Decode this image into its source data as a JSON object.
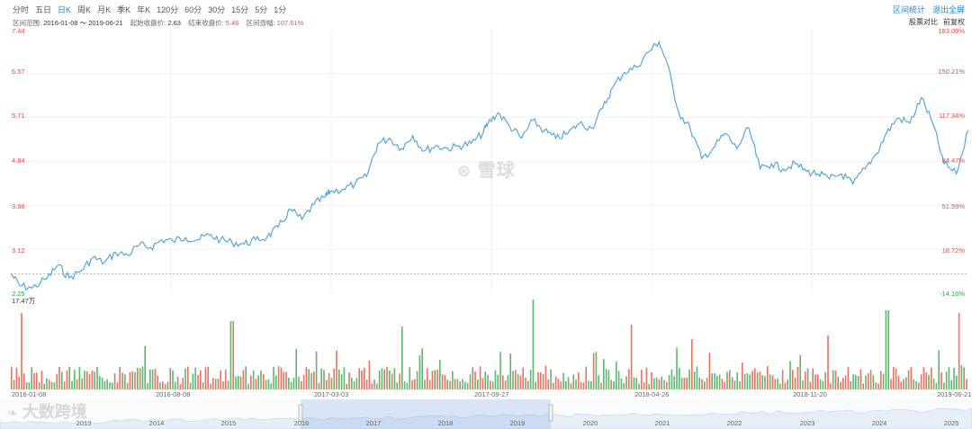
{
  "tabs": [
    "分时",
    "五日",
    "日K",
    "周K",
    "月K",
    "季K",
    "年K",
    "120分",
    "60分",
    "30分",
    "15分",
    "5分",
    "1分"
  ],
  "top_right": {
    "stats": "区间统计",
    "exit_fullscreen": "退出全屏"
  },
  "range": {
    "range_label": "区间范围:",
    "range_value": "2016-01-08 ～ 2019-06-21",
    "start_label": "起始收盘价:",
    "start_value": "2.63",
    "end_label": "结束收盘价:",
    "end_value": "5.46",
    "change_label": "区间涨幅:",
    "change_value": "107.61%"
  },
  "options": {
    "compare": "股票对比",
    "adjust": "前复权"
  },
  "y_left": [
    "7.44",
    "6.57",
    "5.71",
    "4.84",
    "3.98",
    "3.12",
    "2.25"
  ],
  "y_right": [
    "183.09%",
    "150.21%",
    "117.34%",
    "84.47%",
    "51.59%",
    "18.72%",
    "-14.16%"
  ],
  "volume_max_label": "17.47万",
  "x_dates": [
    "2016-01-08",
    "2016-08-08",
    "2017-03-03",
    "2017-09-27",
    "2018-04-26",
    "2018-11-20",
    "2019-06-21"
  ],
  "nav_years": [
    "2013",
    "2014",
    "2015",
    "2016",
    "2017",
    "2018",
    "2019",
    "2020",
    "2021",
    "2022",
    "2023",
    "2024",
    "2025"
  ],
  "watermark": "雪球",
  "watermark2": "大数跨境",
  "colors": {
    "line": "#4a9fe0",
    "up": "#e8735f",
    "down": "#5cb86a",
    "accent": "#1a8ad8"
  },
  "chart_data": {
    "type": "line",
    "title": "",
    "ylim": [
      2.25,
      7.44
    ],
    "y_right_range_pct": [
      -14.16,
      183.09
    ],
    "x_range": [
      "2016-01-08",
      "2019-06-21"
    ],
    "series": [
      {
        "values": [
          [
            "2016-01-08",
            2.63
          ],
          [
            "2016-01-20",
            2.4
          ],
          [
            "2016-02-05",
            2.35
          ],
          [
            "2016-02-25",
            2.55
          ],
          [
            "2016-03-10",
            2.8
          ],
          [
            "2016-03-25",
            2.55
          ],
          [
            "2016-04-10",
            2.7
          ],
          [
            "2016-04-25",
            2.95
          ],
          [
            "2016-05-10",
            2.85
          ],
          [
            "2016-05-25",
            3.05
          ],
          [
            "2016-06-10",
            3.0
          ],
          [
            "2016-06-25",
            3.2
          ],
          [
            "2016-07-10",
            3.15
          ],
          [
            "2016-07-25",
            3.3
          ],
          [
            "2016-08-08",
            3.28
          ],
          [
            "2016-08-25",
            3.35
          ],
          [
            "2016-09-10",
            3.3
          ],
          [
            "2016-09-25",
            3.4
          ],
          [
            "2016-10-10",
            3.3
          ],
          [
            "2016-10-25",
            3.25
          ],
          [
            "2016-11-10",
            3.22
          ],
          [
            "2016-11-25",
            3.3
          ],
          [
            "2016-12-10",
            3.35
          ],
          [
            "2016-12-25",
            3.55
          ],
          [
            "2017-01-10",
            3.9
          ],
          [
            "2017-01-25",
            3.7
          ],
          [
            "2017-02-10",
            4.0
          ],
          [
            "2017-02-25",
            4.15
          ],
          [
            "2017-03-03",
            4.25
          ],
          [
            "2017-03-20",
            4.3
          ],
          [
            "2017-04-05",
            4.4
          ],
          [
            "2017-04-20",
            4.55
          ],
          [
            "2017-05-05",
            5.2
          ],
          [
            "2017-05-20",
            5.3
          ],
          [
            "2017-06-05",
            5.1
          ],
          [
            "2017-06-20",
            5.35
          ],
          [
            "2017-07-05",
            5.05
          ],
          [
            "2017-07-20",
            5.15
          ],
          [
            "2017-08-05",
            5.1
          ],
          [
            "2017-08-20",
            5.15
          ],
          [
            "2017-09-05",
            5.2
          ],
          [
            "2017-09-20",
            5.4
          ],
          [
            "2017-09-27",
            5.6
          ],
          [
            "2017-10-10",
            5.8
          ],
          [
            "2017-10-25",
            5.55
          ],
          [
            "2017-11-10",
            5.3
          ],
          [
            "2017-11-25",
            5.65
          ],
          [
            "2017-12-10",
            5.45
          ],
          [
            "2017-12-25",
            5.3
          ],
          [
            "2018-01-10",
            5.4
          ],
          [
            "2018-01-25",
            5.6
          ],
          [
            "2018-02-10",
            5.5
          ],
          [
            "2018-02-25",
            5.9
          ],
          [
            "2018-03-10",
            6.3
          ],
          [
            "2018-03-25",
            6.6
          ],
          [
            "2018-04-10",
            6.7
          ],
          [
            "2018-04-26",
            7.0
          ],
          [
            "2018-05-10",
            7.2
          ],
          [
            "2018-05-20",
            6.8
          ],
          [
            "2018-06-05",
            5.8
          ],
          [
            "2018-06-20",
            5.5
          ],
          [
            "2018-07-05",
            4.9
          ],
          [
            "2018-07-20",
            5.1
          ],
          [
            "2018-08-05",
            5.4
          ],
          [
            "2018-08-20",
            5.1
          ],
          [
            "2018-09-05",
            5.5
          ],
          [
            "2018-09-20",
            4.7
          ],
          [
            "2018-10-05",
            4.8
          ],
          [
            "2018-10-20",
            4.7
          ],
          [
            "2018-11-05",
            4.8
          ],
          [
            "2018-11-20",
            4.65
          ],
          [
            "2018-12-05",
            4.6
          ],
          [
            "2018-12-20",
            4.5
          ],
          [
            "2019-01-05",
            4.6
          ],
          [
            "2019-01-20",
            4.4
          ],
          [
            "2019-02-05",
            4.7
          ],
          [
            "2019-02-20",
            5.0
          ],
          [
            "2019-03-05",
            5.4
          ],
          [
            "2019-03-20",
            5.7
          ],
          [
            "2019-04-05",
            5.6
          ],
          [
            "2019-04-20",
            6.1
          ],
          [
            "2019-05-05",
            5.6
          ],
          [
            "2019-05-20",
            4.8
          ],
          [
            "2019-06-05",
            4.6
          ],
          [
            "2019-06-21",
            5.46
          ]
        ]
      }
    ],
    "volume_unit_max": "17.47万"
  }
}
